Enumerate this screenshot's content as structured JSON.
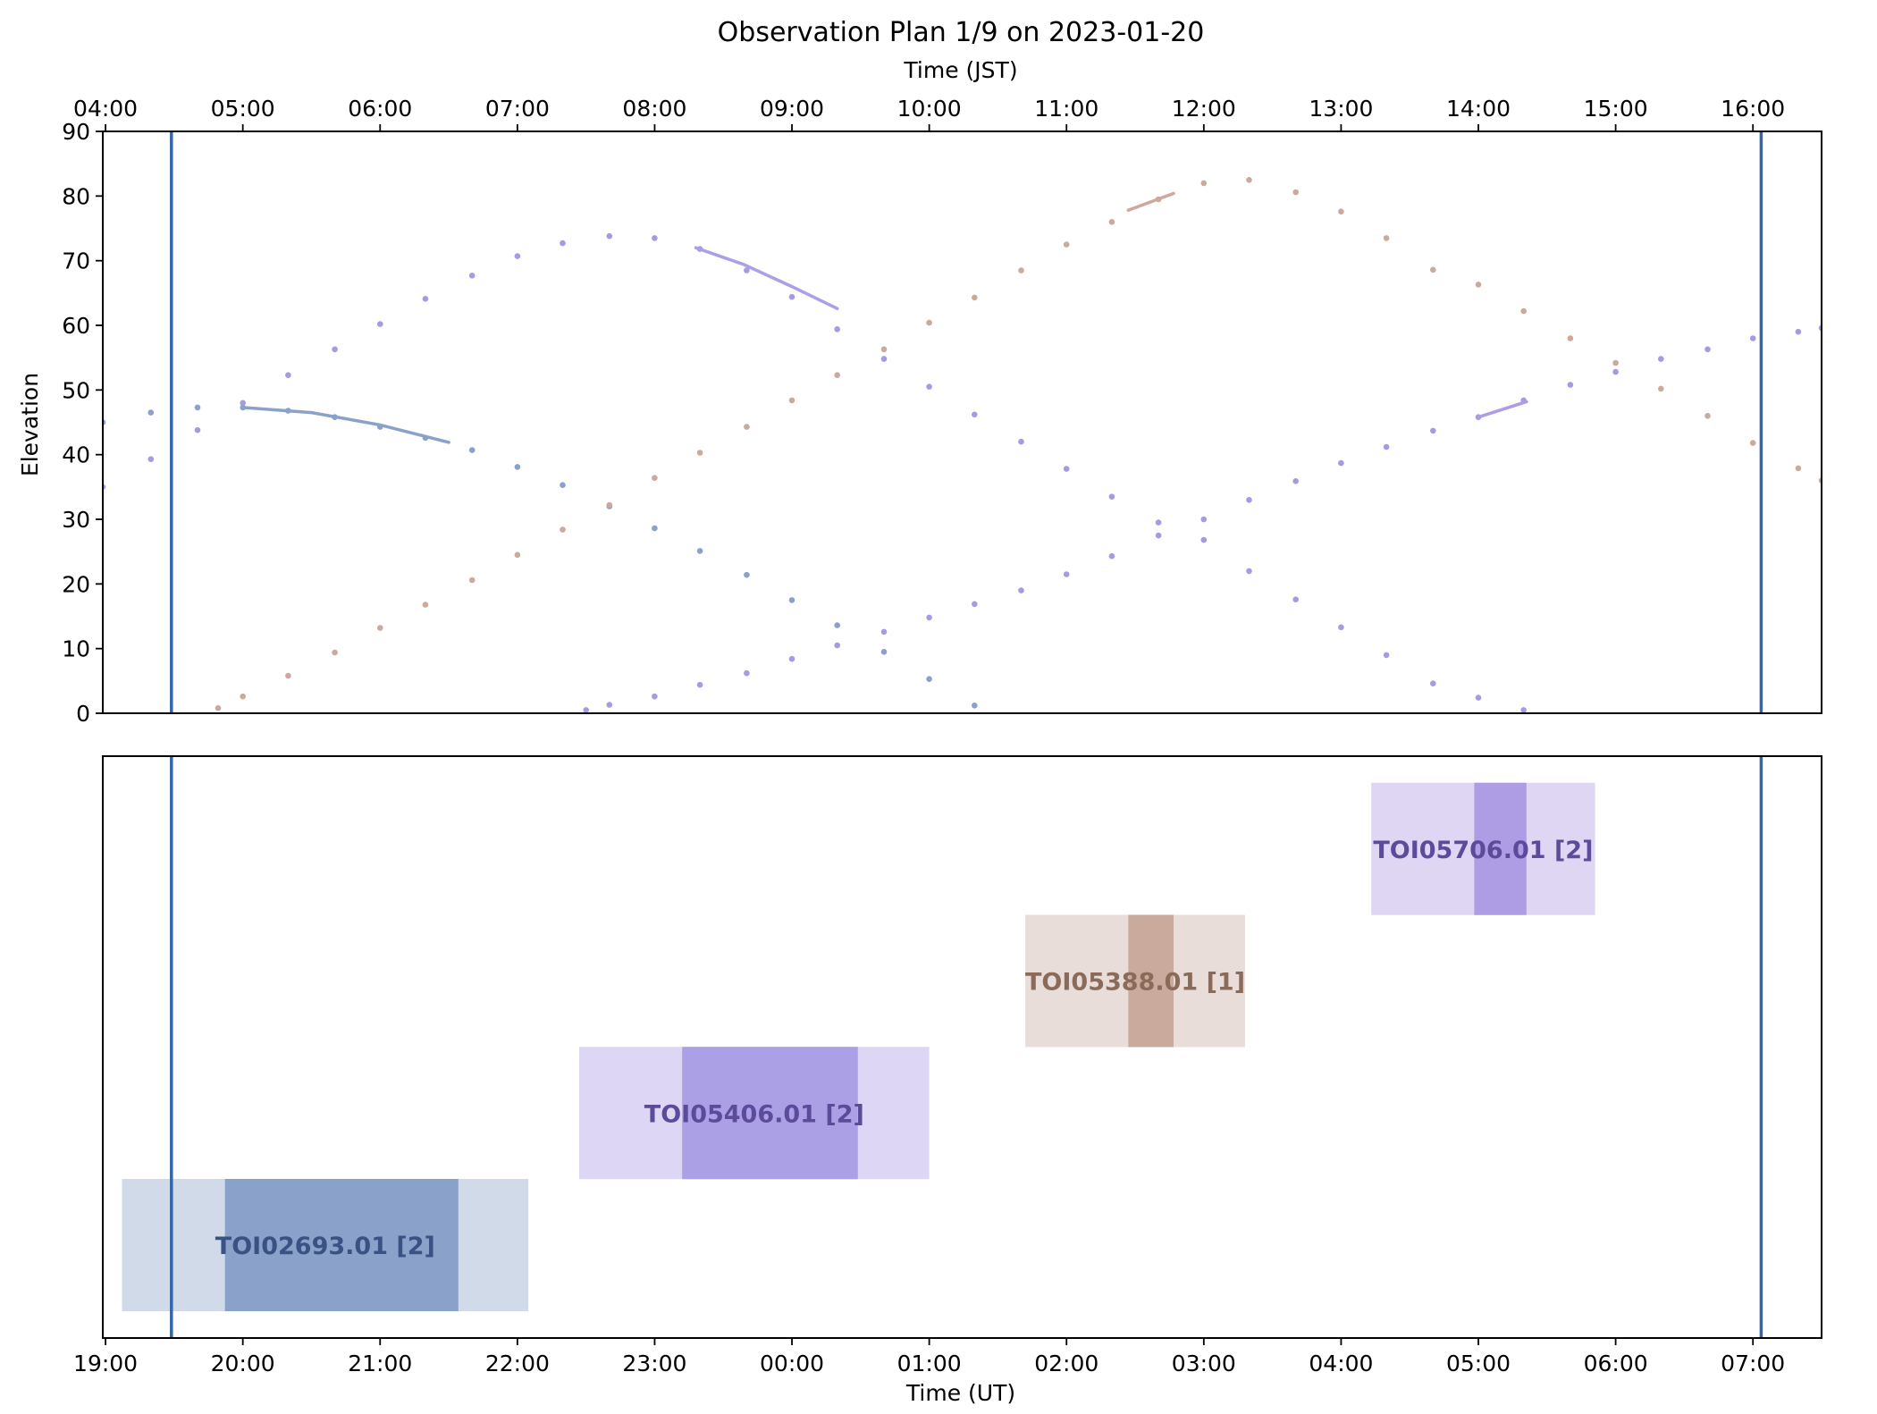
{
  "chart_data": {
    "type": "observation-plan",
    "title": "Observation Plan 1/9 on 2023-01-20",
    "top_xlabel": "Time (JST)",
    "bottom_xlabel": "Time (UT)",
    "ylabel": "Elevation",
    "x_units": "hours UT (19.0 = 19:00 on 2023-01-19, 24+ = next day)",
    "xlim": [
      18.98,
      31.5
    ],
    "ylim": [
      0,
      90
    ],
    "yticks": [
      0,
      10,
      20,
      30,
      40,
      50,
      60,
      70,
      80,
      90
    ],
    "grid": false,
    "ut_ticks": [
      {
        "x": 19,
        "label": "19:00"
      },
      {
        "x": 20,
        "label": "20:00"
      },
      {
        "x": 21,
        "label": "21:00"
      },
      {
        "x": 22,
        "label": "22:00"
      },
      {
        "x": 23,
        "label": "23:00"
      },
      {
        "x": 24,
        "label": "00:00"
      },
      {
        "x": 25,
        "label": "01:00"
      },
      {
        "x": 26,
        "label": "02:00"
      },
      {
        "x": 27,
        "label": "03:00"
      },
      {
        "x": 28,
        "label": "04:00"
      },
      {
        "x": 29,
        "label": "05:00"
      },
      {
        "x": 30,
        "label": "06:00"
      },
      {
        "x": 31,
        "label": "07:00"
      }
    ],
    "jst_ticks": [
      {
        "x": 19,
        "label": "04:00"
      },
      {
        "x": 20,
        "label": "05:00"
      },
      {
        "x": 21,
        "label": "06:00"
      },
      {
        "x": 22,
        "label": "07:00"
      },
      {
        "x": 23,
        "label": "08:00"
      },
      {
        "x": 24,
        "label": "09:00"
      },
      {
        "x": 25,
        "label": "10:00"
      },
      {
        "x": 26,
        "label": "11:00"
      },
      {
        "x": 27,
        "label": "12:00"
      },
      {
        "x": 28,
        "label": "13:00"
      },
      {
        "x": 29,
        "label": "14:00"
      },
      {
        "x": 30,
        "label": "15:00"
      },
      {
        "x": 31,
        "label": "16:00"
      }
    ],
    "vlines": [
      19.48,
      31.06
    ],
    "vline_color": "#3467a8",
    "colors": {
      "TOI02693.01": {
        "main": "#8aa2c9",
        "light": "#d0dae8",
        "text": "#3a5183",
        "dots": "#8aa2c9"
      },
      "TOI05406.01": {
        "main": "#ab9fe6",
        "light": "#ddd6f4",
        "text": "#5c4a9a",
        "dots": "#a69ae3"
      },
      "TOI05388.01": {
        "main": "#c9aa9c",
        "light": "#e8ddd8",
        "text": "#8a6a58",
        "dots": "#c9aa9c"
      },
      "TOI05706.01": {
        "main": "#ae9ce5",
        "light": "#dfd6f3",
        "text": "#5c4a9a",
        "dots": "#a69ae3"
      }
    },
    "targets": [
      {
        "name": "TOI02693.01",
        "label": "TOI02693.01 [2]",
        "row": 0,
        "window": [
          19.12,
          22.08
        ],
        "transit": [
          19.87,
          21.57
        ],
        "elevation_series": {
          "x": [
            18.98,
            19.33,
            19.67,
            20.0,
            20.33,
            20.67,
            21.0,
            21.33,
            21.67,
            22.0,
            22.33,
            22.67,
            23.0,
            23.33,
            23.67,
            24.0,
            24.33,
            24.67,
            25.0,
            25.33
          ],
          "y": [
            45.0,
            46.5,
            47.3,
            47.3,
            46.8,
            45.8,
            44.3,
            42.6,
            40.7,
            38.1,
            35.3,
            32.0,
            28.6,
            25.1,
            21.4,
            17.5,
            13.6,
            9.5,
            5.3,
            1.2
          ]
        },
        "transit_curve": {
          "x": [
            20.0,
            20.5,
            21.0,
            21.5
          ],
          "y": [
            47.3,
            46.5,
            44.6,
            41.9
          ]
        }
      },
      {
        "name": "TOI05406.01",
        "label": "TOI05406.01 [2]",
        "row": 1,
        "window": [
          22.45,
          25.0
        ],
        "transit": [
          23.2,
          24.48
        ],
        "elevation_series": {
          "x": [
            18.98,
            19.33,
            19.67,
            20.0,
            20.33,
            20.67,
            21.0,
            21.33,
            21.67,
            22.0,
            22.33,
            22.67,
            23.0,
            23.33,
            23.67,
            24.0,
            24.33,
            24.67,
            25.0,
            25.33,
            25.67,
            26.0,
            26.33,
            26.67,
            27.0,
            27.33,
            27.67,
            28.0,
            28.33,
            28.67,
            29.0,
            29.33
          ],
          "y": [
            35.0,
            39.3,
            43.8,
            48.0,
            52.3,
            56.3,
            60.2,
            64.1,
            67.7,
            70.7,
            72.7,
            73.8,
            73.5,
            71.8,
            68.5,
            64.4,
            59.4,
            54.8,
            50.5,
            46.2,
            42.0,
            37.8,
            33.5,
            29.5,
            26.8,
            22.0,
            17.6,
            13.3,
            9.0,
            4.6,
            2.4,
            0.5
          ]
        },
        "transit_curve": {
          "x": [
            23.3,
            23.65,
            24.0,
            24.33
          ],
          "y": [
            72.0,
            69.4,
            66.0,
            62.6
          ]
        }
      },
      {
        "name": "TOI05388.01",
        "label": "TOI05388.01 [1]",
        "row": 2,
        "window": [
          25.7,
          27.3
        ],
        "transit": [
          26.45,
          26.78
        ],
        "elevation_series": {
          "x": [
            19.82,
            20.0,
            20.33,
            20.67,
            21.0,
            21.33,
            21.67,
            22.0,
            22.33,
            22.67,
            23.0,
            23.33,
            23.67,
            24.0,
            24.33,
            24.67,
            25.0,
            25.33,
            25.67,
            26.0,
            26.33,
            26.67,
            27.0,
            27.33,
            27.67,
            28.0,
            28.33,
            28.67,
            29.0,
            29.33,
            29.67,
            30.0,
            30.33,
            30.67,
            31.0,
            31.33,
            31.5
          ],
          "y": [
            0.8,
            2.6,
            5.8,
            9.4,
            13.2,
            16.8,
            20.6,
            24.5,
            28.4,
            32.2,
            36.4,
            40.3,
            44.3,
            48.4,
            52.3,
            56.3,
            60.4,
            64.3,
            68.5,
            72.5,
            76.0,
            79.5,
            82.0,
            82.5,
            80.6,
            77.6,
            73.5,
            68.6,
            66.3,
            62.2,
            58.0,
            54.2,
            50.2,
            46.0,
            41.8,
            37.9,
            36.0
          ]
        },
        "transit_curve": {
          "x": [
            26.45,
            26.6,
            26.78
          ],
          "y": [
            77.8,
            79.0,
            80.4
          ]
        }
      },
      {
        "name": "TOI05706.01",
        "label": "TOI05706.01 [2]",
        "row": 3,
        "window": [
          28.22,
          29.85
        ],
        "transit": [
          28.97,
          29.35
        ],
        "elevation_series": {
          "x": [
            22.5,
            22.67,
            23.0,
            23.33,
            23.67,
            24.0,
            24.33,
            24.67,
            25.0,
            25.33,
            25.67,
            26.0,
            26.33,
            26.67,
            27.0,
            27.33,
            27.67,
            28.0,
            28.33,
            28.67,
            29.0,
            29.33,
            29.67,
            30.0,
            30.33,
            30.67,
            31.0,
            31.33,
            31.5
          ],
          "y": [
            0.5,
            1.3,
            2.6,
            4.4,
            6.2,
            8.4,
            10.5,
            12.6,
            14.8,
            16.9,
            19.0,
            21.5,
            24.3,
            27.5,
            30.0,
            33.0,
            35.9,
            38.7,
            41.2,
            43.7,
            45.8,
            48.4,
            50.8,
            52.8,
            54.8,
            56.3,
            58.0,
            59.0,
            59.6
          ]
        },
        "transit_curve": {
          "x": [
            29.0,
            29.35
          ],
          "y": [
            45.8,
            48.2
          ]
        }
      }
    ]
  }
}
